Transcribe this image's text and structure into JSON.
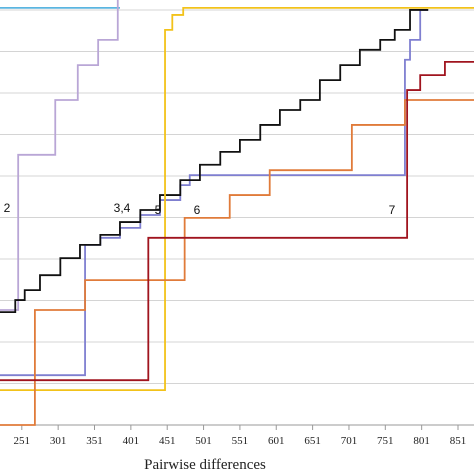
{
  "chart_data": {
    "type": "line",
    "step": true,
    "x_label": "Pairwise differences",
    "xlim": [
      221,
      873
    ],
    "ylim": [
      0,
      10.24
    ],
    "xticks": [
      251,
      301,
      351,
      401,
      451,
      501,
      551,
      601,
      651,
      701,
      751,
      801,
      851
    ],
    "yticks": [
      0,
      1,
      2,
      3,
      4,
      5,
      6,
      7,
      8,
      9,
      10
    ],
    "grid": true,
    "annotations": [
      "2",
      "3,4",
      "5",
      "6",
      "7"
    ],
    "series": [
      {
        "color": "#5bb5e0",
        "x": [
          221,
          386
        ],
        "values": [
          10.05,
          10.05
        ]
      },
      {
        "color": "#b9a6d6",
        "x": [
          221,
          246,
          297,
          328,
          356,
          383
        ],
        "values": [
          2.77,
          6.51,
          7.83,
          8.67,
          9.28,
          10.24
        ]
      },
      {
        "color": "#7f7fd0",
        "x": [
          221,
          338,
          359,
          386,
          414,
          441,
          469,
          482,
          778,
          785,
          799,
          810
        ],
        "values": [
          1.2,
          4.34,
          4.51,
          4.75,
          5.06,
          5.42,
          5.78,
          6.02,
          8.8,
          9.28,
          10.0,
          10.0
        ]
      },
      {
        "color": "#111111",
        "x": [
          221,
          242,
          255,
          276,
          304,
          331,
          359,
          386,
          414,
          441,
          469,
          496,
          524,
          551,
          579,
          606,
          634,
          661,
          689,
          716,
          744,
          764,
          785,
          810
        ],
        "values": [
          2.72,
          3.01,
          3.25,
          3.61,
          4.02,
          4.34,
          4.58,
          4.89,
          5.18,
          5.54,
          5.9,
          6.27,
          6.58,
          6.87,
          7.23,
          7.59,
          7.83,
          8.31,
          8.67,
          9.04,
          9.28,
          9.52,
          10.0,
          10.0
        ]
      },
      {
        "color": "#f2c21a",
        "x": [
          221,
          448,
          458,
          473,
          873
        ],
        "values": [
          0.84,
          9.52,
          9.88,
          10.05,
          10.05
        ]
      },
      {
        "color": "#e07b3a",
        "x": [
          221,
          269,
          338,
          475,
          537,
          592,
          705,
          778,
          873
        ],
        "values": [
          0,
          2.77,
          3.49,
          4.99,
          5.54,
          6.14,
          7.23,
          7.83,
          7.83
        ]
      },
      {
        "color": "#a0141e",
        "x": [
          221,
          425,
          781,
          799,
          833,
          873
        ],
        "values": [
          1.08,
          4.51,
          8.07,
          8.43,
          8.75,
          8.75
        ]
      }
    ]
  }
}
